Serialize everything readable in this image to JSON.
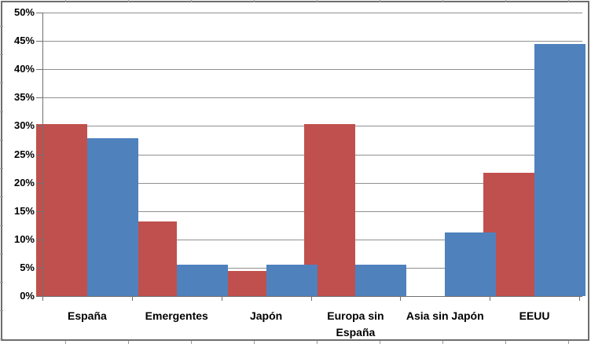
{
  "chart_data": {
    "type": "bar",
    "title": "",
    "categories": [
      "España",
      "Emergentes",
      "Japón",
      "Europa sin España",
      "Asia sin Japón",
      "EEUU"
    ],
    "series": [
      {
        "name": "red-series",
        "color": "#C0504D",
        "values": [
          30.4,
          13.1,
          4.4,
          30.4,
          0,
          21.7
        ]
      },
      {
        "name": "blue-series",
        "color": "#4F81BD",
        "values": [
          27.8,
          5.6,
          5.6,
          5.6,
          11.2,
          44.4
        ]
      }
    ],
    "xlabel": "",
    "ylabel": "",
    "ylim": [
      0,
      50
    ],
    "ytick_step": 5,
    "ytick_labels": [
      "0%",
      "5%",
      "10%",
      "15%",
      "20%",
      "25%",
      "30%",
      "35%",
      "40%",
      "45%",
      "50%"
    ],
    "grid": true,
    "legend": "none",
    "bar_gap_ratio": 1.5
  },
  "colors": {
    "background": "#FFFFFF",
    "gridline": "#8F8F8F",
    "axis": "#707070",
    "chart_border": "#6E6E6E",
    "sheet_stub": "#9B9B9B",
    "label_text": "#000000"
  }
}
